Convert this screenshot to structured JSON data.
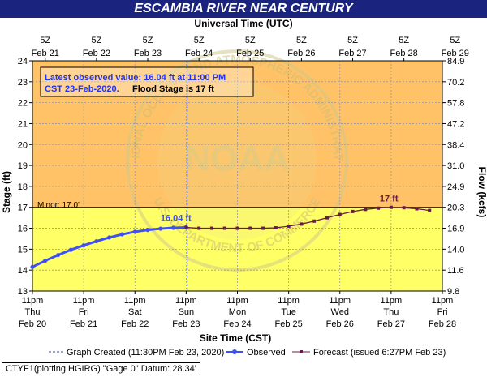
{
  "header": {
    "title": "ESCAMBIA RIVER NEAR CENTURY"
  },
  "top_axis": {
    "title": "Universal Time (UTC)",
    "ticks": [
      {
        "l1": "5Z",
        "l2": "Feb 21"
      },
      {
        "l1": "5Z",
        "l2": "Feb 22"
      },
      {
        "l1": "5Z",
        "l2": "Feb 23"
      },
      {
        "l1": "5Z",
        "l2": "Feb 24"
      },
      {
        "l1": "5Z",
        "l2": "Feb 25"
      },
      {
        "l1": "5Z",
        "l2": "Feb 26"
      },
      {
        "l1": "5Z",
        "l2": "Feb 27"
      },
      {
        "l1": "5Z",
        "l2": "Feb 28"
      },
      {
        "l1": "5Z",
        "l2": "Feb 29"
      }
    ]
  },
  "bottom_axis": {
    "title": "Site Time (CST)",
    "ticks": [
      {
        "l1": "11pm",
        "l2": "Thu",
        "l3": "Feb 20"
      },
      {
        "l1": "11pm",
        "l2": "Fri",
        "l3": "Feb 21"
      },
      {
        "l1": "11pm",
        "l2": "Sat",
        "l3": "Feb 22"
      },
      {
        "l1": "11pm",
        "l2": "Sun",
        "l3": "Feb 23"
      },
      {
        "l1": "11pm",
        "l2": "Mon",
        "l3": "Feb 24"
      },
      {
        "l1": "11pm",
        "l2": "Tue",
        "l3": "Feb 25"
      },
      {
        "l1": "11pm",
        "l2": "Wed",
        "l3": "Feb 26"
      },
      {
        "l1": "11pm",
        "l2": "Thu",
        "l3": "Feb 27"
      },
      {
        "l1": "11pm",
        "l2": "Fri",
        "l3": "Feb 28"
      }
    ]
  },
  "left_axis": {
    "title": "Stage (ft)",
    "ticks": [
      "13",
      "14",
      "15",
      "16",
      "17",
      "18",
      "19",
      "20",
      "21",
      "22",
      "23",
      "24"
    ]
  },
  "right_axis": {
    "title": "Flow (kcfs)",
    "ticks": [
      "9.8",
      "11.6",
      "14.0",
      "16.9",
      "20.3",
      "24.9",
      "31.0",
      "38.4",
      "47.2",
      "57.8",
      "70.2",
      "84.9"
    ]
  },
  "info_box": {
    "line1": "Latest observed value: 16.04 ft at 11:00 PM",
    "line2a": "CST 23-Feb-2020.",
    "line2b": "Flood Stage is 17 ft"
  },
  "annotations": {
    "minor": "Minor: 17.0'",
    "observed_label": "16.04 ft",
    "forecast_label": "17 ft"
  },
  "watermark": {
    "center": "NOAA",
    "ring_top": "NATIONAL OCEANIC AND ATMOSPHERIC ADMINISTRATION",
    "ring_bottom": "U.S. DEPARTMENT OF COMMERCE"
  },
  "legend": {
    "created": "Graph Created (11:30PM Feb 23, 2020)",
    "observed": "Observed",
    "forecast": "Forecast (issued 6:27PM Feb 23)"
  },
  "footer": {
    "text": "CTYF1(plotting HGIRG) \"Gage 0\" Datum: 28.34'"
  },
  "colors": {
    "above_flood": "#ffc266",
    "below_flood": "#ffff66",
    "observed": "#3f51f5",
    "forecast": "#6a1a4a",
    "title_bg": "#1a237e",
    "info_text": "#2233ee",
    "created_line": "#3344aa"
  },
  "chart_data": {
    "type": "line",
    "ylim": [
      13,
      24
    ],
    "flood_stage": 17,
    "x_unit": "days after 11pm CST Thu Feb 20",
    "xlim": [
      0,
      8
    ],
    "graph_created_x": 3.02,
    "series": [
      {
        "name": "Observed",
        "x": [
          0,
          0.25,
          0.5,
          0.75,
          1,
          1.25,
          1.5,
          1.75,
          2,
          2.25,
          2.5,
          2.75,
          3
        ],
        "y": [
          14.15,
          14.45,
          14.72,
          14.97,
          15.18,
          15.38,
          15.56,
          15.71,
          15.83,
          15.92,
          15.98,
          16.02,
          16.04
        ]
      },
      {
        "name": "Forecast (issued 6:27PM Feb 23)",
        "x": [
          3,
          3.25,
          3.5,
          3.75,
          4,
          4.25,
          4.5,
          4.75,
          5,
          5.25,
          5.5,
          5.75,
          6,
          6.25,
          6.5,
          6.75,
          7,
          7.25,
          7.5,
          7.75
        ],
        "y": [
          16.04,
          16.0,
          16.0,
          16.0,
          16.0,
          16.0,
          16.0,
          16.02,
          16.1,
          16.2,
          16.34,
          16.5,
          16.66,
          16.8,
          16.9,
          16.96,
          17.0,
          16.98,
          16.93,
          16.85
        ]
      }
    ]
  }
}
